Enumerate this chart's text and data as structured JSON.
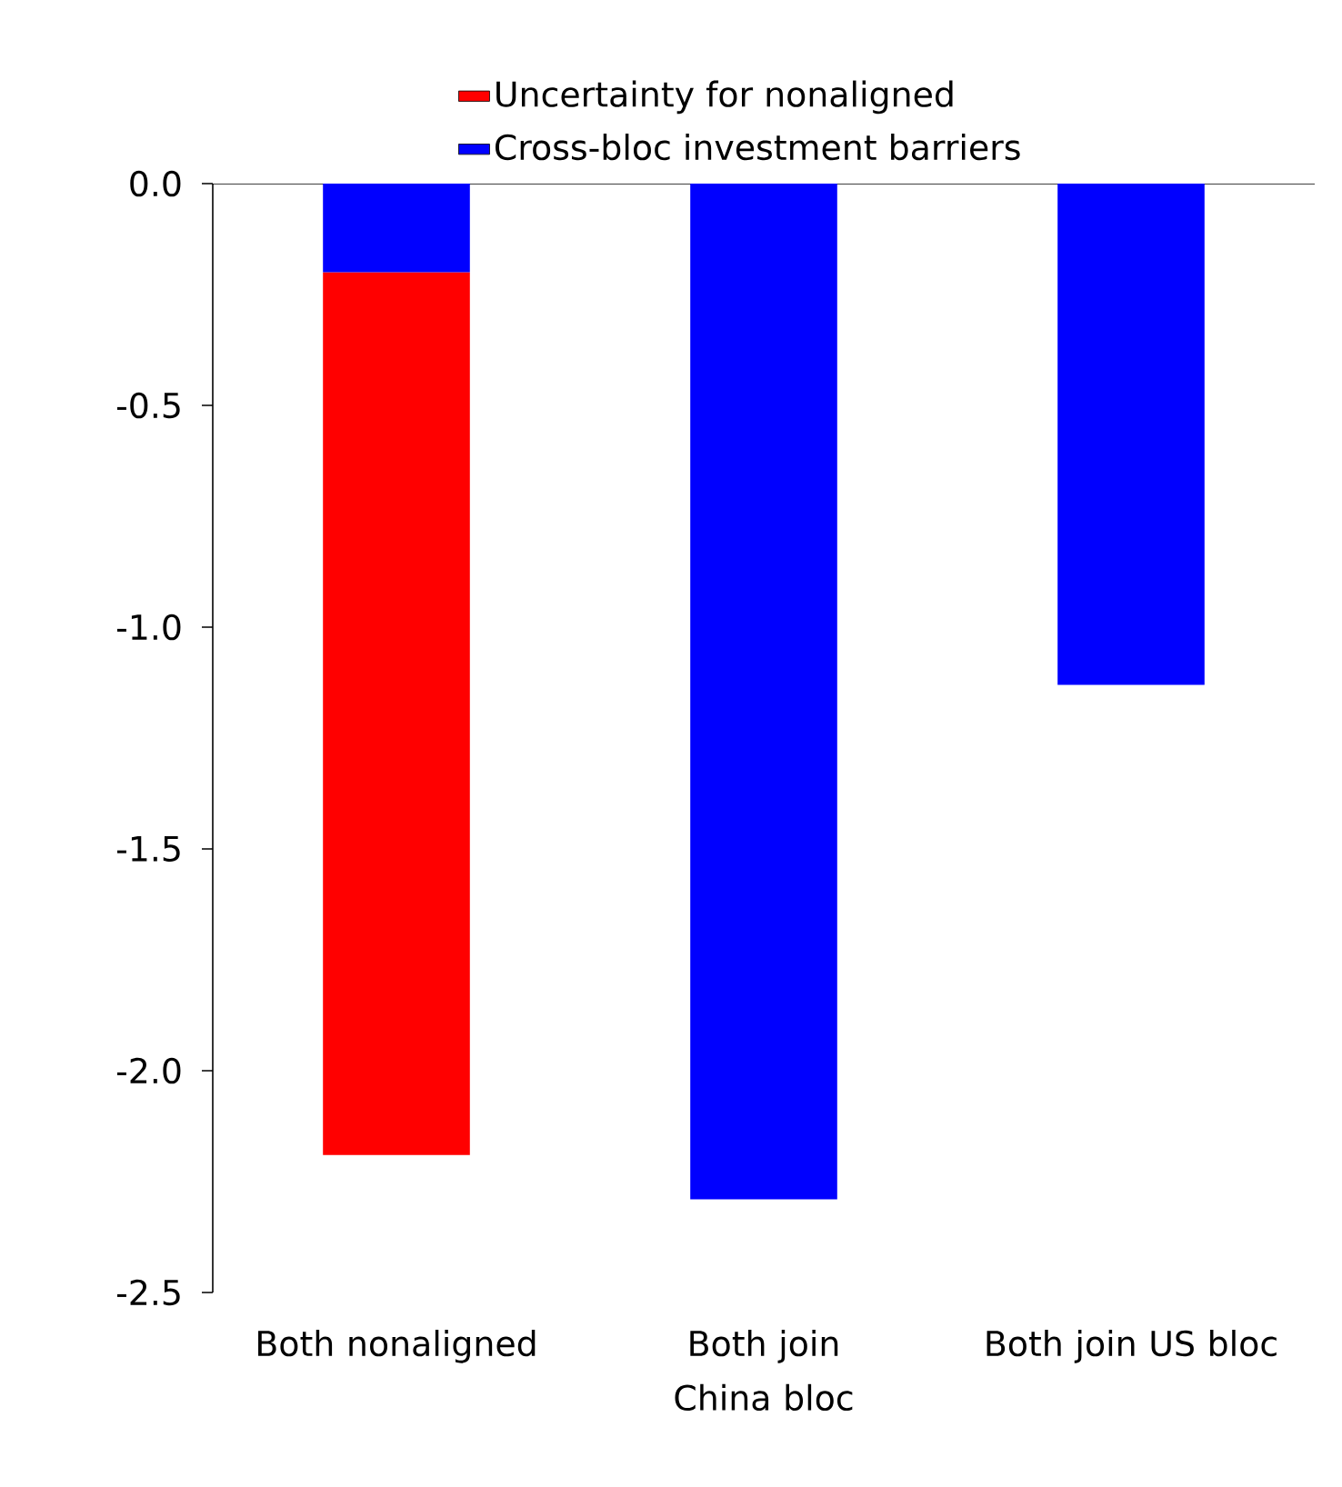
{
  "chart_data": {
    "type": "bar",
    "stacked": true,
    "categories": [
      "Both nonaligned",
      "Both join China bloc",
      "Both join US bloc"
    ],
    "series": [
      {
        "name": "Cross-bloc investment barriers",
        "color": "#0000ff",
        "values": [
          -0.2,
          -2.29,
          -1.13
        ]
      },
      {
        "name": "Uncertainty for nonaligned",
        "color": "#ff0000",
        "values": [
          -1.99,
          null,
          null
        ]
      }
    ],
    "ylim": [
      -2.5,
      0
    ],
    "yticks": [
      {
        "value": 0,
        "label": "0.0"
      },
      {
        "value": -0.5,
        "label": "-0.5"
      },
      {
        "value": -1,
        "label": "-1.0"
      },
      {
        "value": -1.5,
        "label": "-1.5"
      },
      {
        "value": -2,
        "label": "-2.0"
      },
      {
        "value": -2.5,
        "label": "-2.5"
      }
    ],
    "legend": "top",
    "grid": false
  }
}
